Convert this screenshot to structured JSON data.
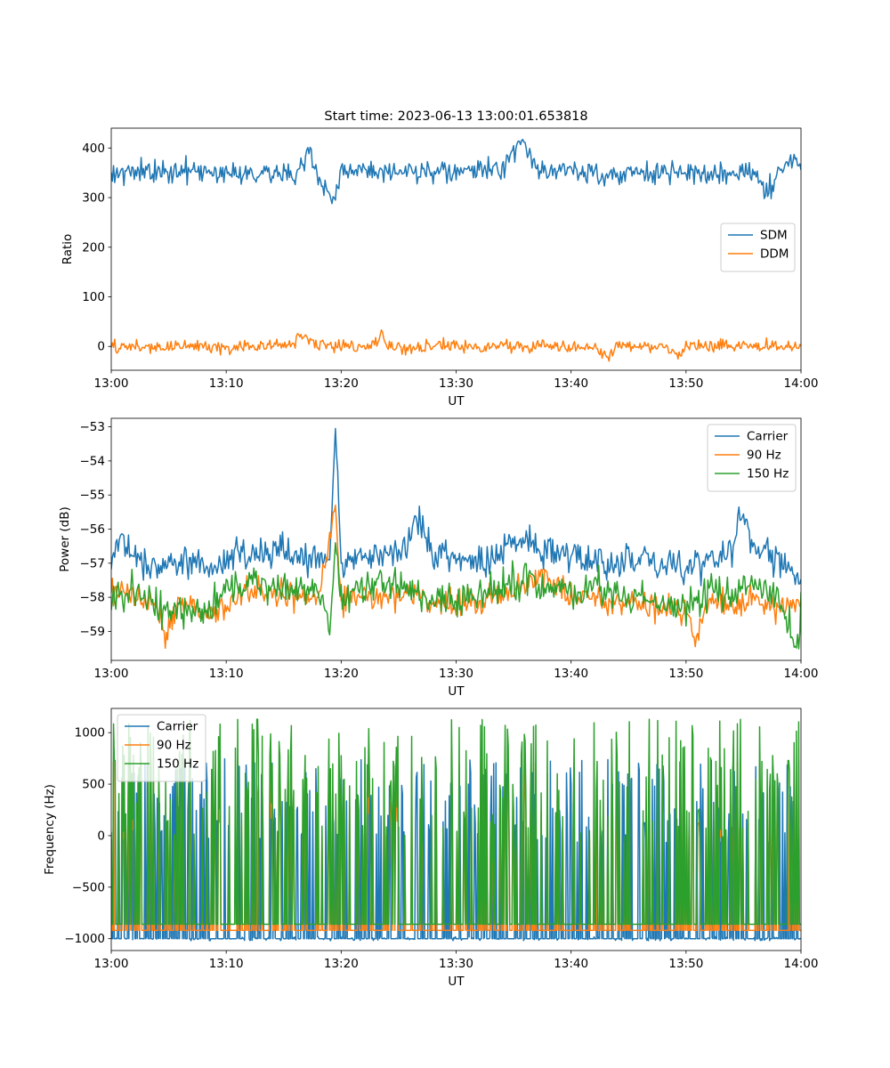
{
  "figure": {
    "title": "Start time: 2023-06-13 13:00:01.653818"
  },
  "colors": {
    "blue": "#1f77b4",
    "orange": "#ff7f0e",
    "green": "#2ca02c"
  },
  "chart_data": [
    {
      "type": "line",
      "title": "Start time: 2023-06-13 13:00:01.653818",
      "xlabel": "UT",
      "ylabel": "Ratio",
      "x_start": "13:00",
      "x_end": "14:00",
      "x_range_minutes": [
        0,
        60
      ],
      "xticks": [
        "13:00",
        "13:10",
        "13:20",
        "13:30",
        "13:40",
        "13:50",
        "14:00"
      ],
      "ylim": [
        -48,
        440
      ],
      "yticks": [
        0,
        100,
        200,
        300,
        400
      ],
      "legend": "center-right",
      "series": [
        {
          "name": "SDM",
          "color": "#1f77b4",
          "x_minutes": [
            0,
            2,
            4,
            6,
            8,
            10,
            12,
            14,
            16,
            17.2,
            18,
            19.4,
            20,
            22,
            24,
            26,
            28,
            30,
            32,
            34,
            35.8,
            37,
            38,
            40,
            42,
            44,
            46,
            48,
            50,
            52,
            54,
            56,
            57,
            58,
            59.8,
            60
          ],
          "values": [
            355,
            350,
            352,
            355,
            348,
            355,
            350,
            352,
            345,
            390,
            340,
            295,
            352,
            355,
            345,
            352,
            350,
            350,
            355,
            358,
            418,
            350,
            358,
            352,
            350,
            345,
            350,
            352,
            345,
            350,
            345,
            358,
            305,
            355,
            378,
            360
          ],
          "noise": 14
        },
        {
          "name": "DDM",
          "color": "#ff7f0e",
          "x_minutes": [
            0,
            2,
            4,
            6,
            8,
            10,
            12,
            14,
            16,
            16.2,
            18,
            20,
            22,
            23.5,
            24,
            26,
            28,
            30,
            32,
            34,
            36,
            38,
            40,
            42,
            43.3,
            44,
            46,
            48,
            49.5,
            50,
            52,
            54,
            56,
            58,
            60
          ],
          "values": [
            -2,
            0,
            -3,
            2,
            0,
            -4,
            2,
            0,
            3,
            30,
            2,
            0,
            -2,
            22,
            0,
            -3,
            2,
            0,
            -2,
            3,
            0,
            2,
            -2,
            0,
            -22,
            0,
            2,
            0,
            -22,
            2,
            0,
            3,
            2,
            0,
            0
          ],
          "noise": 8
        }
      ]
    },
    {
      "type": "line",
      "xlabel": "UT",
      "ylabel": "Power (dB)",
      "x_range_minutes": [
        0,
        60
      ],
      "xticks": [
        "13:00",
        "13:10",
        "13:20",
        "13:30",
        "13:40",
        "13:50",
        "14:00"
      ],
      "ylim": [
        -59.85,
        -52.75
      ],
      "yticks": [
        -59,
        -58,
        -57,
        -56,
        -55,
        -54,
        -53
      ],
      "legend": "top-right",
      "series": [
        {
          "name": "Carrier",
          "color": "#1f77b4",
          "x_minutes": [
            0,
            1,
            3,
            5,
            7,
            9,
            11,
            13,
            15,
            17,
            19,
            19.5,
            20,
            22,
            24,
            26,
            26.5,
            28,
            30,
            32,
            34,
            36,
            38,
            40,
            42,
            44,
            46,
            48,
            50,
            52,
            54,
            54.6,
            56,
            58,
            60
          ],
          "values": [
            -57.0,
            -56.3,
            -57.0,
            -57.0,
            -56.9,
            -57.1,
            -56.7,
            -56.6,
            -56.6,
            -56.9,
            -56.9,
            -53.05,
            -57.0,
            -56.8,
            -56.7,
            -56.5,
            -55.6,
            -56.6,
            -56.8,
            -57.0,
            -56.6,
            -56.4,
            -56.6,
            -56.8,
            -56.9,
            -57.1,
            -56.8,
            -57.0,
            -57.1,
            -56.9,
            -56.6,
            -55.5,
            -56.7,
            -56.9,
            -57.6
          ],
          "noise": 0.3
        },
        {
          "name": "90 Hz",
          "color": "#ff7f0e",
          "x_minutes": [
            0,
            2,
            4,
            4.7,
            6,
            8,
            10,
            12,
            14,
            16,
            18,
            19.5,
            20,
            22,
            24,
            26,
            28,
            30,
            32,
            34,
            36,
            37.5,
            40,
            42,
            44,
            46,
            48,
            50,
            50.7,
            52,
            54,
            56,
            58,
            60
          ],
          "values": [
            -57.8,
            -57.9,
            -58.3,
            -59.3,
            -58.0,
            -58.4,
            -58.3,
            -57.8,
            -57.9,
            -57.9,
            -58.0,
            -55.3,
            -58.1,
            -58.0,
            -58.0,
            -57.9,
            -58.2,
            -58.2,
            -58.1,
            -57.8,
            -57.7,
            -57.3,
            -58.0,
            -57.9,
            -58.1,
            -58.2,
            -58.3,
            -58.4,
            -59.35,
            -58.0,
            -58.1,
            -58.1,
            -58.4,
            -58.0
          ],
          "noise": 0.25
        },
        {
          "name": "150 Hz",
          "color": "#2ca02c",
          "x_minutes": [
            0,
            2,
            4,
            6,
            8,
            10,
            12,
            14,
            16,
            18,
            19.0,
            19.5,
            20,
            22,
            24,
            26,
            28,
            30,
            32,
            34,
            36,
            38,
            40,
            42,
            44,
            46,
            48,
            50,
            52,
            54,
            56,
            58,
            59.7,
            60
          ],
          "values": [
            -57.9,
            -57.8,
            -58.3,
            -58.4,
            -58.5,
            -57.8,
            -57.6,
            -57.7,
            -57.9,
            -57.8,
            -59.1,
            -56.4,
            -58.0,
            -57.8,
            -57.5,
            -57.7,
            -58.2,
            -58.1,
            -58.0,
            -57.6,
            -57.5,
            -57.7,
            -58.0,
            -57.6,
            -58.0,
            -58.0,
            -58.2,
            -58.3,
            -57.8,
            -58.0,
            -57.6,
            -58.0,
            -59.5,
            -58.2
          ],
          "noise": 0.3
        }
      ]
    },
    {
      "type": "line",
      "xlabel": "UT",
      "ylabel": "Frequency (Hz)",
      "x_range_minutes": [
        0,
        60
      ],
      "xticks": [
        "13:00",
        "13:10",
        "13:20",
        "13:30",
        "13:40",
        "13:50",
        "14:00"
      ],
      "ylim": [
        -1115,
        1235
      ],
      "yticks": [
        -1000,
        -500,
        0,
        500,
        1000
      ],
      "legend": "top-left",
      "series": [
        {
          "name": "Carrier",
          "color": "#1f77b4",
          "baseline": -1000,
          "spike_min": -300,
          "spike_max": 830
        },
        {
          "name": "90 Hz",
          "color": "#ff7f0e",
          "baseline": -920,
          "spike_min": -300,
          "spike_max": 830
        },
        {
          "name": "150 Hz",
          "color": "#2ca02c",
          "baseline": -860,
          "spike_min": -300,
          "spike_max": 1130,
          "spike_peaks": [
            [
              12.7,
              1130
            ],
            [
              10.8,
              850
            ],
            [
              0.3,
              730
            ],
            [
              21.3,
              720
            ],
            [
              42.3,
              720
            ],
            [
              58.9,
              730
            ]
          ]
        }
      ]
    }
  ]
}
